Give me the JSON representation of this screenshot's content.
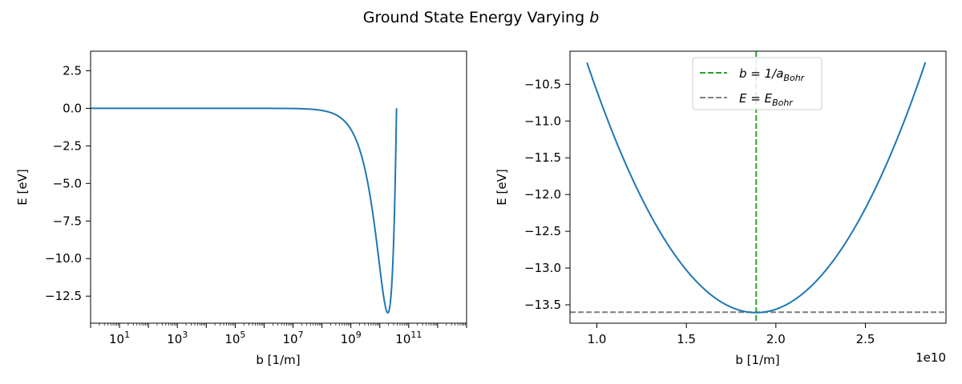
{
  "figure": {
    "suptitle": "Ground State Energy Varying ",
    "suptitle_var": "b"
  },
  "chart_data": [
    {
      "type": "line",
      "xscale": "log",
      "xlabel": "b [1/m]",
      "ylabel": "E [eV]",
      "xlim": [
        1,
        10000000000000
      ],
      "ylim": [
        -14.3,
        3.8
      ],
      "x_ticks": [
        {
          "base": "10",
          "exp": "1",
          "value": 10
        },
        {
          "base": "10",
          "exp": "3",
          "value": 1000
        },
        {
          "base": "10",
          "exp": "5",
          "value": 100000
        },
        {
          "base": "10",
          "exp": "7",
          "value": 10000000
        },
        {
          "base": "10",
          "exp": "9",
          "value": 1000000000
        },
        {
          "base": "10",
          "exp": "11",
          "value": 100000000000
        }
      ],
      "y_ticks": [
        "2.5",
        "0.0",
        "−2.5",
        "−5.0",
        "−7.5",
        "−10.0",
        "−12.5"
      ],
      "y_tick_values": [
        2.5,
        0.0,
        -2.5,
        -5.0,
        -7.5,
        -10.0,
        -12.5
      ],
      "series": [
        {
          "color": "#1f77b4",
          "x_range": [
            1,
            37800000000
          ],
          "model": "E = 3.81e-20 b^2 - 1.44e-9 b"
        }
      ]
    },
    {
      "type": "line",
      "xscale": "linear",
      "xlabel": "b [1/m]",
      "ylabel": "E [eV]",
      "offset_text": "1e10",
      "xlim": [
        0.85,
        2.95
      ],
      "ylim": [
        -13.75,
        -10.05
      ],
      "x_ticks": [
        "1.0",
        "1.5",
        "2.0",
        "2.5"
      ],
      "x_tick_values": [
        1.0,
        1.5,
        2.0,
        2.5
      ],
      "y_ticks": [
        "−10.5",
        "−11.0",
        "−11.5",
        "−12.0",
        "−12.5",
        "−13.0",
        "−13.5"
      ],
      "y_tick_values": [
        -10.5,
        -11.0,
        -11.5,
        -12.0,
        -12.5,
        -13.0,
        -13.5
      ],
      "series": [
        {
          "color": "#1f77b4",
          "x_range": [
            0.945,
            2.835
          ],
          "model": "E = 3.81e-20 b^2 - 1.44e-9 b"
        }
      ],
      "vline": {
        "x": 1.89,
        "color": "#2ca02c",
        "style": "dashed"
      },
      "hline": {
        "y": -13.6,
        "color": "#7f7f7f",
        "style": "dashed"
      },
      "legend": {
        "position": "upper center",
        "entries": [
          {
            "color": "#2ca02c",
            "label_pre": "b = 1/a",
            "label_sub": "Bohr"
          },
          {
            "color": "#7f7f7f",
            "label_pre": "E = E",
            "label_sub": "Bohr"
          }
        ]
      }
    }
  ]
}
